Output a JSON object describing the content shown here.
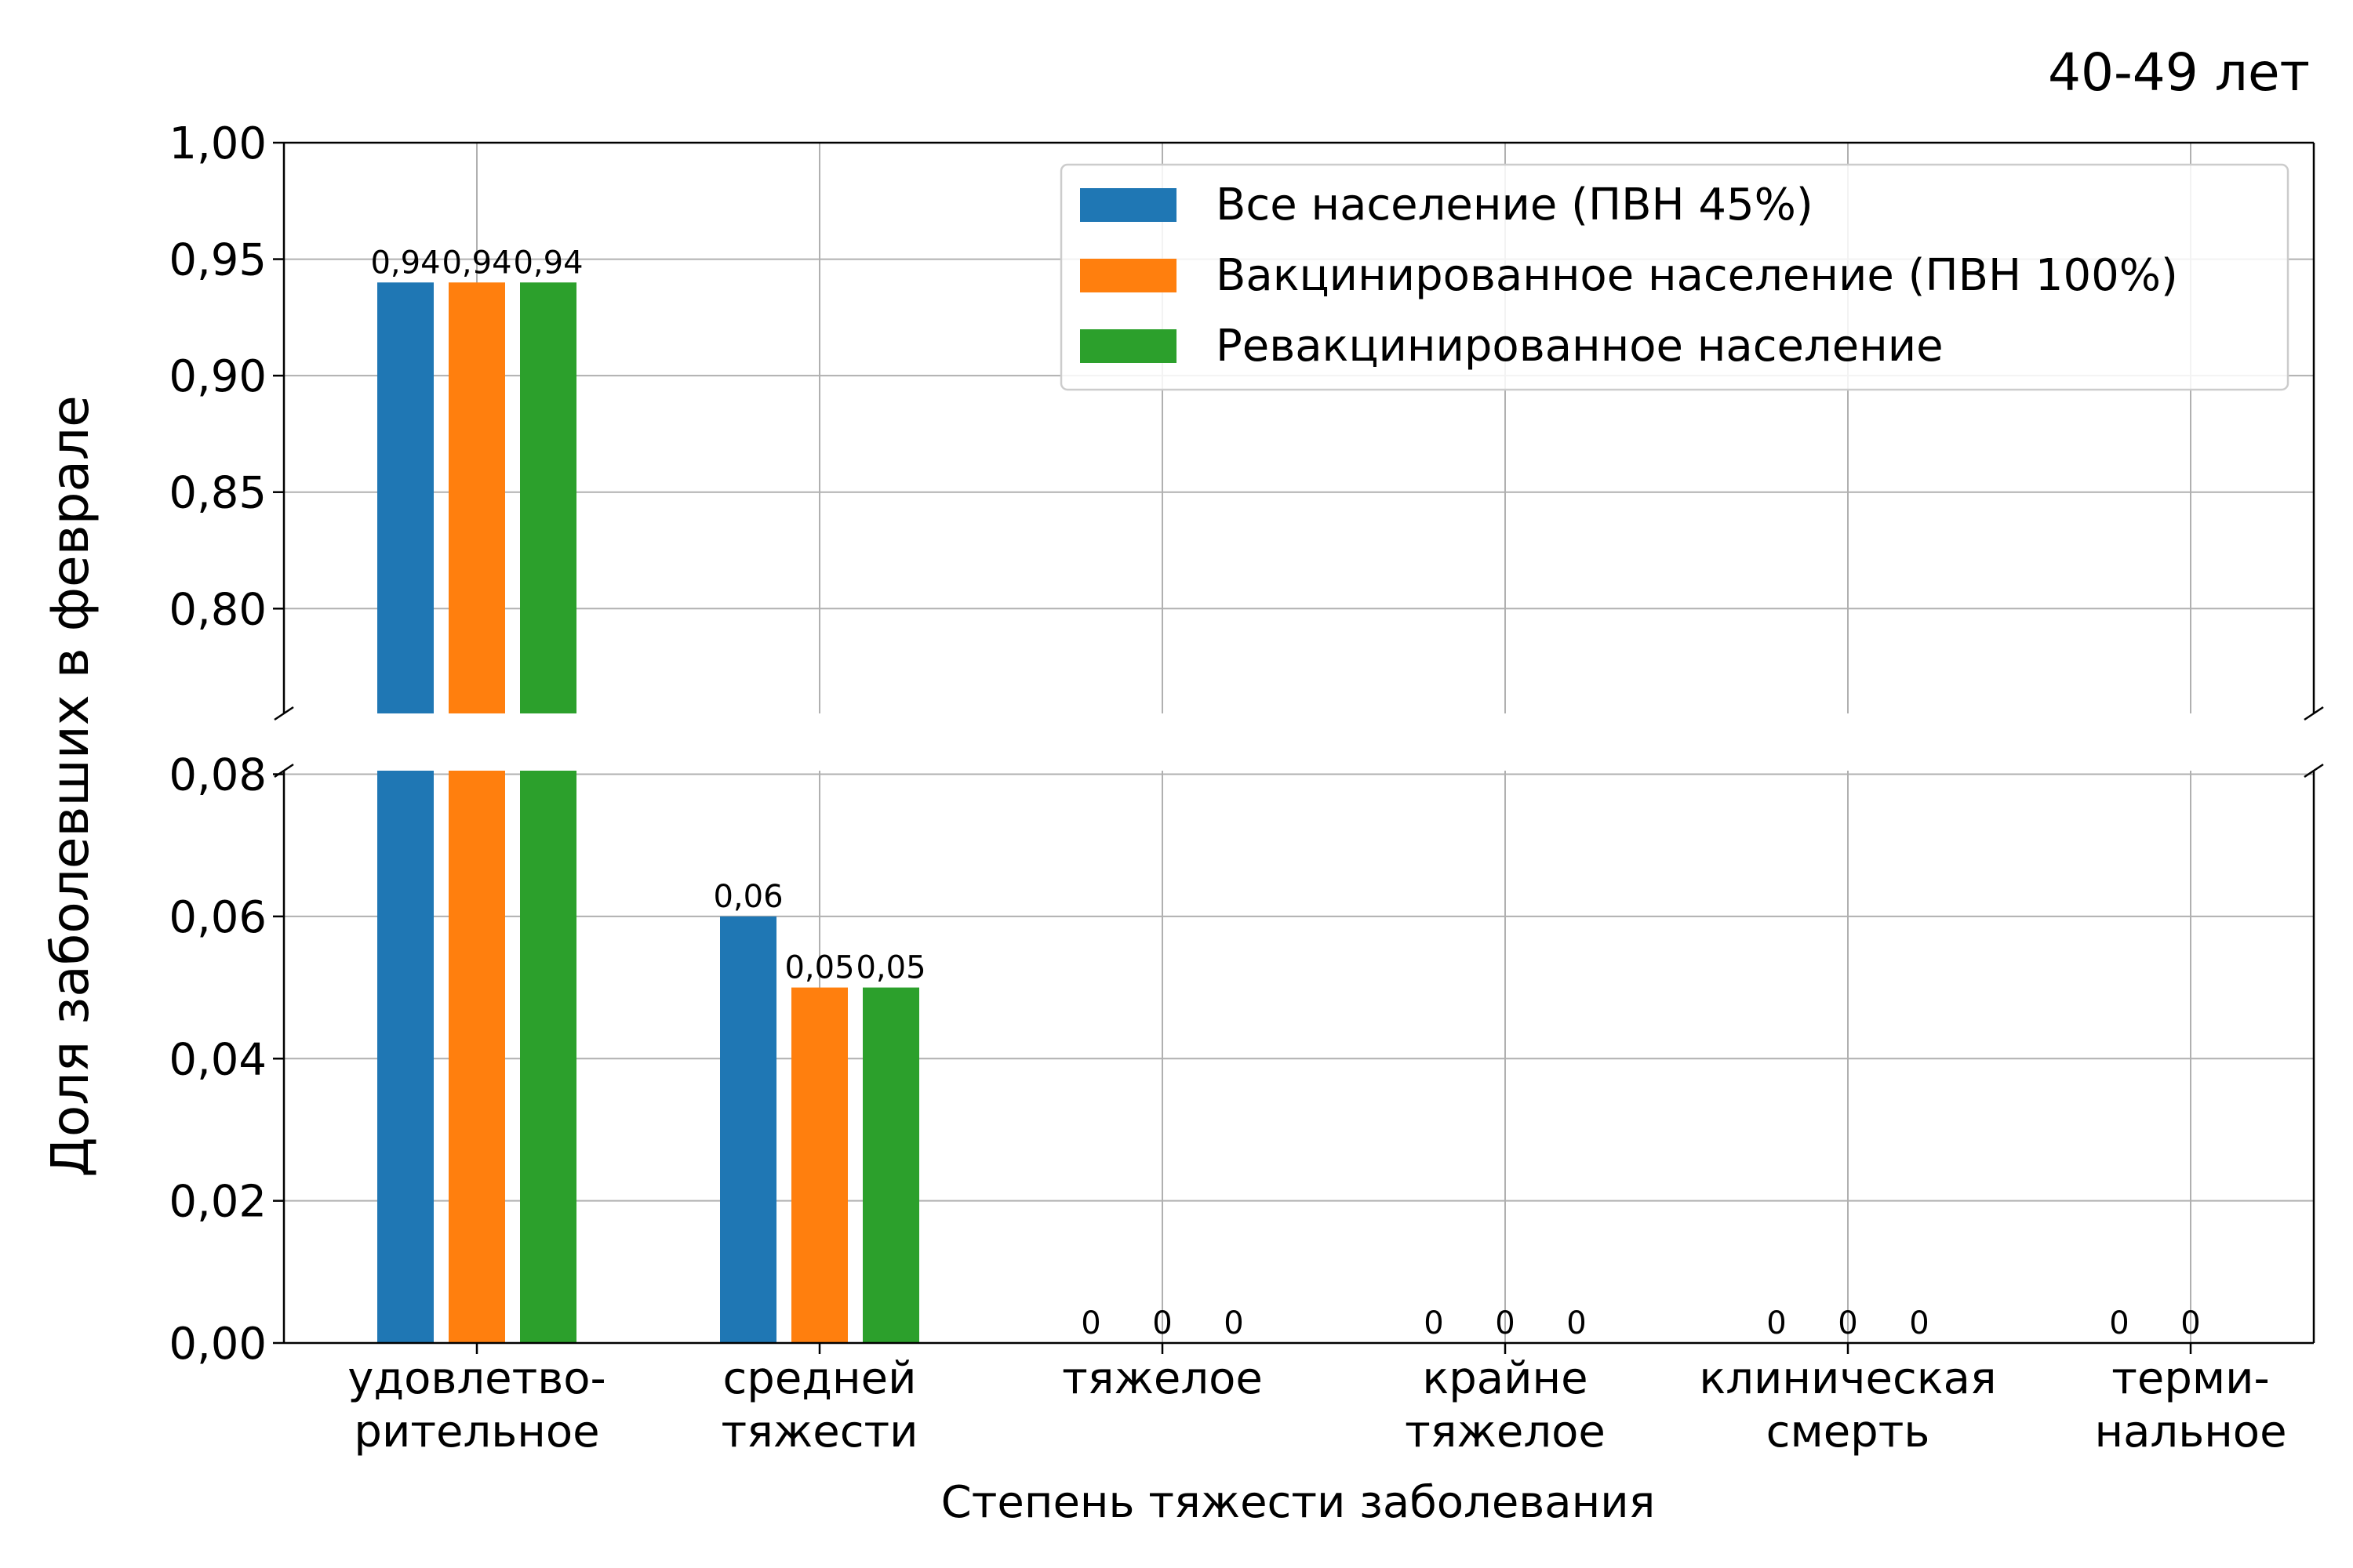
{
  "chart_data": {
    "type": "bar",
    "title": "40-49 лет",
    "xlabel": "Степень тяжести заболевания",
    "ylabel": "Доля заболевших в феврале",
    "categories": [
      [
        "удовлетво-",
        "рительное"
      ],
      [
        "средней",
        "тяжести"
      ],
      [
        "тяжелое"
      ],
      [
        "крайне",
        "тяжелое"
      ],
      [
        "клиническая",
        "смерть"
      ],
      [
        "терми-",
        "нальное"
      ]
    ],
    "series": [
      {
        "name": "Все население (ПВН 45%)",
        "color": "#1f77b4",
        "values": [
          0.94,
          0.06,
          0,
          0,
          0,
          0
        ]
      },
      {
        "name": "Вакцинированное население (ПВН 100%)",
        "color": "#ff7f0e",
        "values": [
          0.94,
          0.05,
          0,
          0,
          0,
          0
        ]
      },
      {
        "name": "Ревакцинированное население",
        "color": "#2ca02c",
        "values": [
          0.94,
          0.05,
          0,
          0,
          0,
          null
        ]
      }
    ],
    "data_labels": [
      [
        "0,94",
        "0,06",
        "0",
        "0",
        "0",
        "0"
      ],
      [
        "0,94",
        "0,05",
        "0",
        "0",
        "0",
        "0"
      ],
      [
        "0,94",
        "0,05",
        "0",
        "0",
        "0",
        ""
      ]
    ],
    "upper_axis": {
      "ylim": [
        0.755,
        1.0
      ],
      "ticks": [
        0.8,
        0.85,
        0.9,
        0.95,
        1.0
      ],
      "tick_labels": [
        "0,80",
        "0,85",
        "0,90",
        "0,95",
        "1,00"
      ]
    },
    "lower_axis": {
      "ylim": [
        0.0,
        0.0805
      ],
      "ticks": [
        0.0,
        0.02,
        0.04,
        0.06,
        0.08
      ],
      "tick_labels": [
        "0,00",
        "0,02",
        "0,04",
        "0,06",
        "0,08"
      ]
    },
    "broken_axis": true,
    "grid": true,
    "legend_position": "top-right"
  }
}
